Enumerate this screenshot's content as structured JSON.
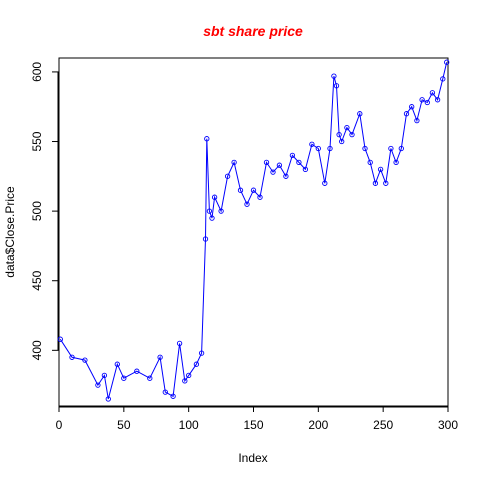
{
  "chart_data": {
    "type": "line",
    "title": "sbt share price",
    "xlabel": "Index",
    "ylabel": "data$Close.Price",
    "xlim": [
      0,
      300
    ],
    "ylim": [
      360,
      610
    ],
    "x_ticks": [
      0,
      50,
      100,
      150,
      200,
      250,
      300
    ],
    "y_ticks": [
      400,
      450,
      500,
      550,
      600
    ],
    "grid": false,
    "legend": "none",
    "colors": {
      "title": "#ff0000",
      "series": "#0000ff",
      "axis": "#000000"
    },
    "series": [
      {
        "name": "Close.Price",
        "marker": "open-circle",
        "x": [
          1,
          10,
          20,
          30,
          35,
          38,
          45,
          50,
          60,
          70,
          78,
          82,
          88,
          93,
          97,
          100,
          106,
          110,
          113,
          114,
          116,
          118,
          120,
          125,
          130,
          135,
          140,
          145,
          150,
          155,
          160,
          165,
          170,
          175,
          180,
          185,
          190,
          195,
          200,
          205,
          209,
          212,
          214,
          216,
          218,
          222,
          226,
          232,
          236,
          240,
          244,
          248,
          252,
          256,
          260,
          264,
          268,
          272,
          276,
          280,
          284,
          288,
          292,
          296,
          299
        ],
        "y": [
          408,
          395,
          393,
          375,
          382,
          365,
          390,
          380,
          385,
          380,
          395,
          370,
          367,
          405,
          378,
          382,
          390,
          398,
          480,
          552,
          500,
          495,
          510,
          500,
          525,
          535,
          515,
          505,
          515,
          510,
          535,
          528,
          533,
          525,
          540,
          535,
          530,
          548,
          545,
          520,
          545,
          597,
          590,
          555,
          550,
          560,
          555,
          570,
          545,
          535,
          520,
          530,
          520,
          545,
          535,
          545,
          570,
          575,
          565,
          580,
          578,
          585,
          580,
          595,
          607
        ]
      }
    ]
  }
}
